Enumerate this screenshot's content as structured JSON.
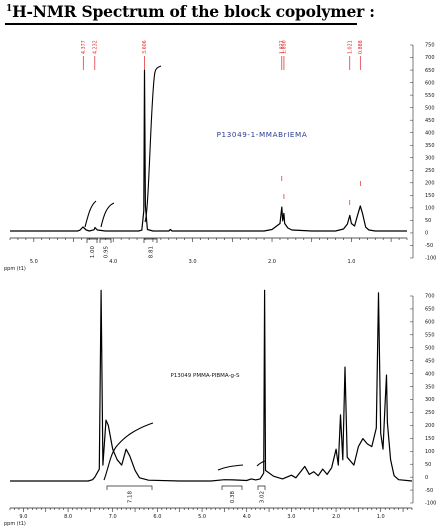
{
  "figure_title": "H-NMR Spectrum of the block copolymer :",
  "figure_title_sup": "1",
  "chart_data": [
    {
      "type": "line",
      "sample_label": "P13049-1-MMABrIEMA",
      "x_ticks": [
        "5.0",
        "4.0",
        "3.0",
        "2.0",
        "1.0"
      ],
      "x_unit": "ppm (t1)",
      "y_ticks": [
        "750",
        "700",
        "650",
        "600",
        "550",
        "500",
        "450",
        "400",
        "350",
        "300",
        "250",
        "200",
        "150",
        "100",
        "50",
        "0",
        "-50",
        "-100"
      ],
      "xlim": [
        5.3,
        0.3
      ],
      "ylim": [
        -110,
        780
      ],
      "peak_labels": [
        "4.377",
        "4.232",
        "3.606",
        "1.877",
        "1.850",
        "1.021",
        "0.888"
      ],
      "integrals": [
        "1.00",
        "0.95",
        "8.81"
      ],
      "spectrum": [
        [
          5.3,
          0
        ],
        [
          4.45,
          0
        ],
        [
          4.42,
          3
        ],
        [
          4.38,
          16
        ],
        [
          4.34,
          4
        ],
        [
          4.3,
          0
        ],
        [
          4.24,
          5
        ],
        [
          4.23,
          14
        ],
        [
          4.2,
          4
        ],
        [
          4.1,
          0
        ],
        [
          3.68,
          0
        ],
        [
          3.64,
          3
        ],
        [
          3.615,
          80
        ],
        [
          3.606,
          640
        ],
        [
          3.595,
          100
        ],
        [
          3.57,
          6
        ],
        [
          3.5,
          0
        ],
        [
          3.3,
          0
        ],
        [
          3.28,
          6
        ],
        [
          3.26,
          0
        ],
        [
          2.6,
          0
        ],
        [
          2.1,
          0
        ],
        [
          2.0,
          6
        ],
        [
          1.9,
          30
        ],
        [
          1.877,
          95
        ],
        [
          1.865,
          40
        ],
        [
          1.855,
          60
        ],
        [
          1.85,
          70
        ],
        [
          1.84,
          30
        ],
        [
          1.8,
          12
        ],
        [
          1.75,
          4
        ],
        [
          1.5,
          0
        ],
        [
          1.2,
          0
        ],
        [
          1.1,
          8
        ],
        [
          1.05,
          28
        ],
        [
          1.021,
          62
        ],
        [
          1.0,
          30
        ],
        [
          0.96,
          20
        ],
        [
          0.93,
          55
        ],
        [
          0.888,
          100
        ],
        [
          0.86,
          70
        ],
        [
          0.82,
          15
        ],
        [
          0.78,
          4
        ],
        [
          0.7,
          0
        ],
        [
          0.3,
          0
        ]
      ]
    },
    {
      "type": "line",
      "sample_label": "P13049 PMMA-PIBMA-g-S",
      "x_ticks": [
        "9.0",
        "8.0",
        "7.0",
        "6.0",
        "5.0",
        "4.0",
        "3.0",
        "2.0",
        "1.0"
      ],
      "x_unit": "ppm (t1)",
      "y_ticks": [
        "700",
        "650",
        "600",
        "550",
        "500",
        "450",
        "400",
        "350",
        "300",
        "250",
        "200",
        "150",
        "100",
        "50",
        "0",
        "-50",
        "-100"
      ],
      "xlim": [
        9.3,
        0.3
      ],
      "ylim": [
        -110,
        740
      ],
      "integrals": [
        "7.18",
        "0.38",
        "3.02"
      ],
      "spectrum": [
        [
          9.3,
          0
        ],
        [
          7.55,
          0
        ],
        [
          7.45,
          5
        ],
        [
          7.4,
          15
        ],
        [
          7.3,
          45
        ],
        [
          7.26,
          720
        ],
        [
          7.22,
          60
        ],
        [
          7.15,
          230
        ],
        [
          7.1,
          210
        ],
        [
          7.0,
          120
        ],
        [
          6.9,
          80
        ],
        [
          6.8,
          60
        ],
        [
          6.7,
          120
        ],
        [
          6.62,
          95
        ],
        [
          6.5,
          40
        ],
        [
          6.4,
          12
        ],
        [
          6.2,
          3
        ],
        [
          5.5,
          0
        ],
        [
          4.8,
          0
        ],
        [
          4.5,
          5
        ],
        [
          4.3,
          4
        ],
        [
          4.0,
          2
        ],
        [
          3.9,
          8
        ],
        [
          3.8,
          4
        ],
        [
          3.7,
          8
        ],
        [
          3.62,
          30
        ],
        [
          3.6,
          720
        ],
        [
          3.58,
          40
        ],
        [
          3.4,
          18
        ],
        [
          3.2,
          8
        ],
        [
          3.0,
          22
        ],
        [
          2.9,
          12
        ],
        [
          2.7,
          55
        ],
        [
          2.6,
          25
        ],
        [
          2.5,
          35
        ],
        [
          2.4,
          20
        ],
        [
          2.3,
          45
        ],
        [
          2.2,
          25
        ],
        [
          2.1,
          50
        ],
        [
          2.0,
          120
        ],
        [
          1.95,
          60
        ],
        [
          1.9,
          250
        ],
        [
          1.85,
          80
        ],
        [
          1.8,
          430
        ],
        [
          1.75,
          90
        ],
        [
          1.6,
          60
        ],
        [
          1.5,
          130
        ],
        [
          1.4,
          160
        ],
        [
          1.3,
          140
        ],
        [
          1.2,
          130
        ],
        [
          1.1,
          200
        ],
        [
          1.05,
          710
        ],
        [
          1.0,
          180
        ],
        [
          0.95,
          120
        ],
        [
          0.9,
          300
        ],
        [
          0.87,
          400
        ],
        [
          0.85,
          220
        ],
        [
          0.78,
          80
        ],
        [
          0.7,
          20
        ],
        [
          0.6,
          5
        ],
        [
          0.3,
          0
        ]
      ]
    }
  ]
}
